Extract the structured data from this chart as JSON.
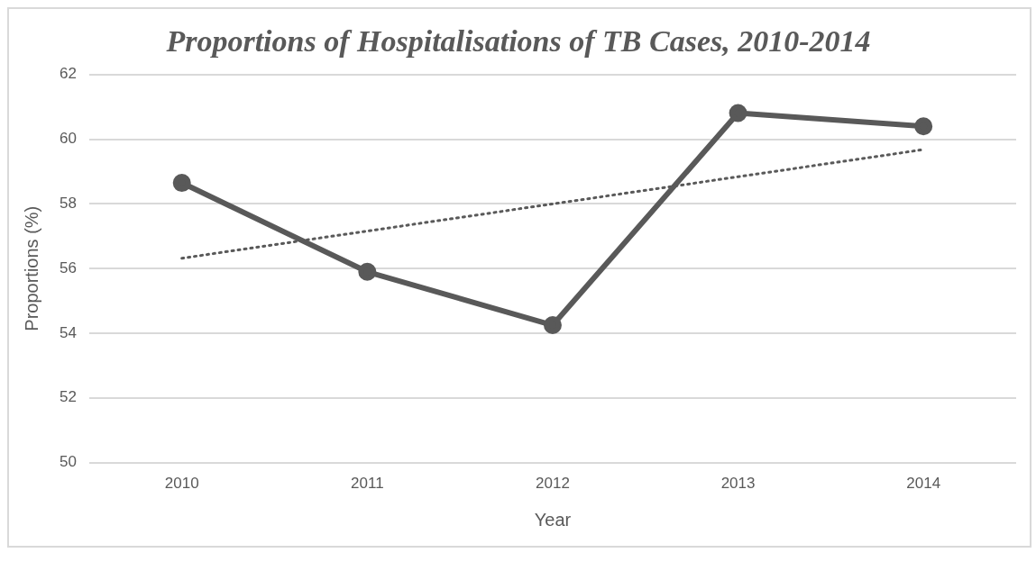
{
  "chart_data": {
    "type": "line",
    "title": "Proportions of Hospitalisations of TB Cases, 2010-2014",
    "xlabel": "Year",
    "ylabel": "Proportions (%)",
    "categories": [
      "2010",
      "2011",
      "2012",
      "2013",
      "2014"
    ],
    "series": [
      {
        "color": "#595959",
        "values": [
          58.65,
          55.9,
          54.25,
          60.81,
          60.4
        ],
        "marker": "circle",
        "line_style": "solid"
      },
      {
        "color": "#595959",
        "values": [
          56.32,
          57.16,
          58.0,
          58.84,
          59.68
        ],
        "marker": "none",
        "line_style": "dotted"
      }
    ],
    "ylim": [
      50,
      62
    ],
    "yticks": [
      50,
      52,
      54,
      56,
      58,
      60,
      62
    ],
    "grid": "y",
    "legend": false
  }
}
